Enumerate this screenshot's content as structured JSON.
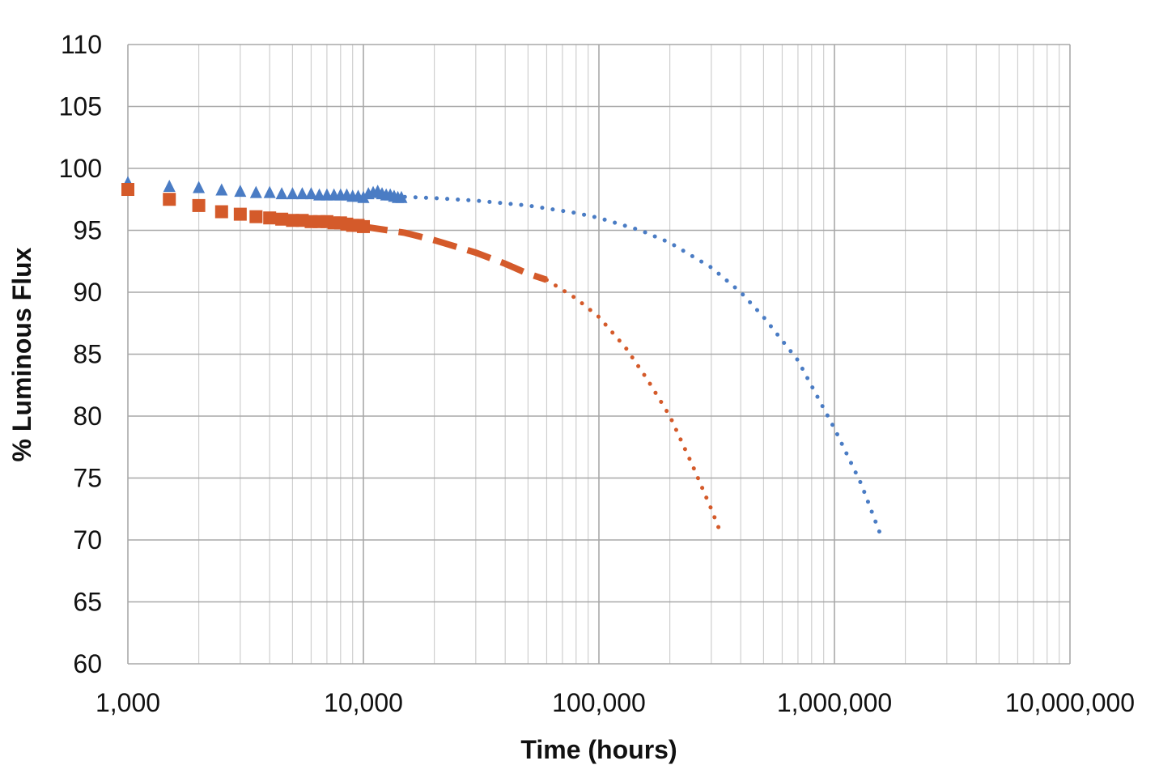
{
  "chart_data": {
    "type": "scatter",
    "title": "",
    "xlabel": "Time (hours)",
    "ylabel": "% Luminous Flux",
    "x_scale": "log",
    "xlim": [
      1000,
      10000000
    ],
    "ylim": [
      60,
      110
    ],
    "x_ticks": [
      1000,
      10000,
      100000,
      1000000,
      10000000
    ],
    "x_tick_labels": [
      "1,000",
      "10,000",
      "100,000",
      "1,000,000",
      "10,000,000"
    ],
    "y_ticks": [
      60,
      65,
      70,
      75,
      80,
      85,
      90,
      95,
      100,
      105,
      110
    ],
    "y_tick_labels": [
      "60",
      "65",
      "70",
      "75",
      "80",
      "85",
      "90",
      "95",
      "100",
      "105",
      "110"
    ],
    "grid": true,
    "legend": "none",
    "series": [
      {
        "color": "#4a7cc4",
        "marker": "triangle",
        "x": [
          1000,
          1500,
          2000,
          2500,
          3000,
          3500,
          4000,
          4500,
          5000,
          5500,
          6000,
          6500,
          7000,
          7500,
          8000,
          8500,
          9000,
          9500,
          10000,
          10500,
          11000,
          11500,
          12000,
          12500,
          13000,
          13500,
          14000,
          14500
        ],
        "y": [
          98.8,
          98.5,
          98.4,
          98.2,
          98.1,
          98.0,
          98.0,
          97.9,
          97.9,
          97.9,
          97.9,
          97.8,
          97.8,
          97.8,
          97.8,
          97.8,
          97.7,
          97.7,
          97.6,
          97.9,
          98.0,
          98.1,
          97.9,
          97.8,
          97.8,
          97.7,
          97.6,
          97.6
        ]
      },
      {
        "color": "#4a7cc4",
        "style": "dotted",
        "x": [
          15000,
          20000,
          30000,
          50000,
          80000,
          100000,
          150000,
          200000,
          300000,
          400000,
          500000,
          700000,
          1000000,
          1300000,
          1600000
        ],
        "y": [
          97.7,
          97.6,
          97.4,
          97.0,
          96.4,
          96.0,
          95.0,
          94.0,
          92.0,
          90.0,
          88.0,
          84.5,
          79.0,
          74.5,
          70.0
        ]
      },
      {
        "color": "#d45a2a",
        "marker": "square",
        "x": [
          1000,
          1500,
          2000,
          2500,
          3000,
          3500,
          4000,
          4500,
          5000,
          5500,
          6000,
          6500,
          7000,
          7500,
          8000,
          8500,
          9000,
          9500,
          10000
        ],
        "y": [
          98.3,
          97.5,
          97.0,
          96.5,
          96.3,
          96.1,
          96.0,
          95.9,
          95.8,
          95.8,
          95.7,
          95.7,
          95.7,
          95.6,
          95.6,
          95.5,
          95.4,
          95.4,
          95.3
        ]
      },
      {
        "color": "#d45a2a",
        "style": "dashed",
        "x": [
          10000,
          15000,
          20000,
          30000,
          40000,
          50000,
          60000
        ],
        "y": [
          95.3,
          94.8,
          94.2,
          93.2,
          92.3,
          91.5,
          91.0
        ]
      },
      {
        "color": "#d45a2a",
        "style": "dotted",
        "x": [
          60000,
          80000,
          100000,
          130000,
          160000,
          200000,
          250000,
          300000,
          330000
        ],
        "y": [
          91.0,
          89.5,
          88.0,
          85.5,
          83.0,
          80.0,
          76.0,
          72.5,
          70.5
        ]
      }
    ]
  }
}
